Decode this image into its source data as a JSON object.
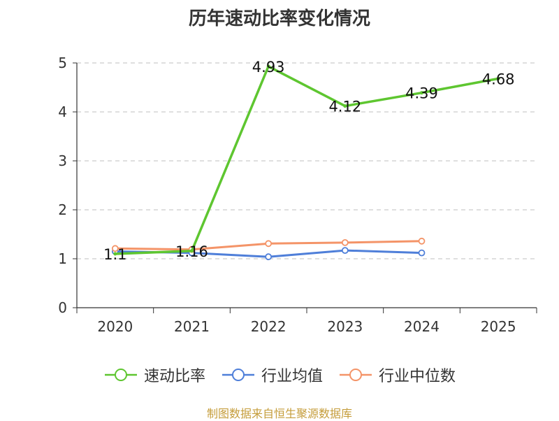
{
  "chart_data": {
    "type": "line",
    "title": "历年速动比率变化情况",
    "categories": [
      "2020",
      "2021",
      "2022",
      "2023",
      "2024",
      "2025"
    ],
    "ylim": [
      0,
      5
    ],
    "yticks": [
      "0",
      "1",
      "2",
      "3",
      "4",
      "5"
    ],
    "grid": true,
    "legend_position": "bottom",
    "series": [
      {
        "name": "速动比率",
        "color": "#5ec630",
        "values": [
          1.1,
          1.16,
          4.93,
          4.12,
          4.39,
          4.68
        ],
        "labels": [
          "1.1",
          "1.16",
          "4.93",
          "4.12",
          "4.39",
          "4.68"
        ]
      },
      {
        "name": "行业均值",
        "color": "#4f7fd9",
        "values": [
          1.15,
          1.12,
          1.04,
          1.17,
          1.12,
          null
        ]
      },
      {
        "name": "行业中位数",
        "color": "#f49468",
        "values": [
          1.21,
          1.19,
          1.31,
          1.33,
          1.36,
          null
        ]
      }
    ]
  },
  "source_text": "制图数据来自恒生聚源数据库"
}
